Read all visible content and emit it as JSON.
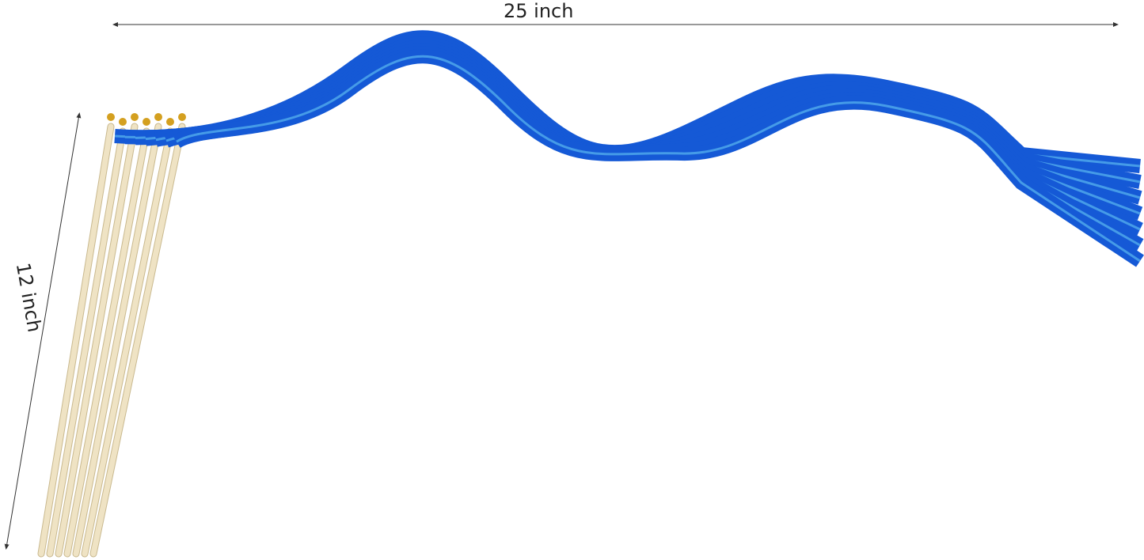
{
  "dimensions": {
    "width_label": "25 inch",
    "height_label": "12 inch"
  },
  "product": {
    "ribbon_color": "#1559d6",
    "ribbon_highlight": "#5ab8f0",
    "stick_color": "#efe3c4",
    "bell_color": "#d4a020",
    "wand_count": 7
  }
}
